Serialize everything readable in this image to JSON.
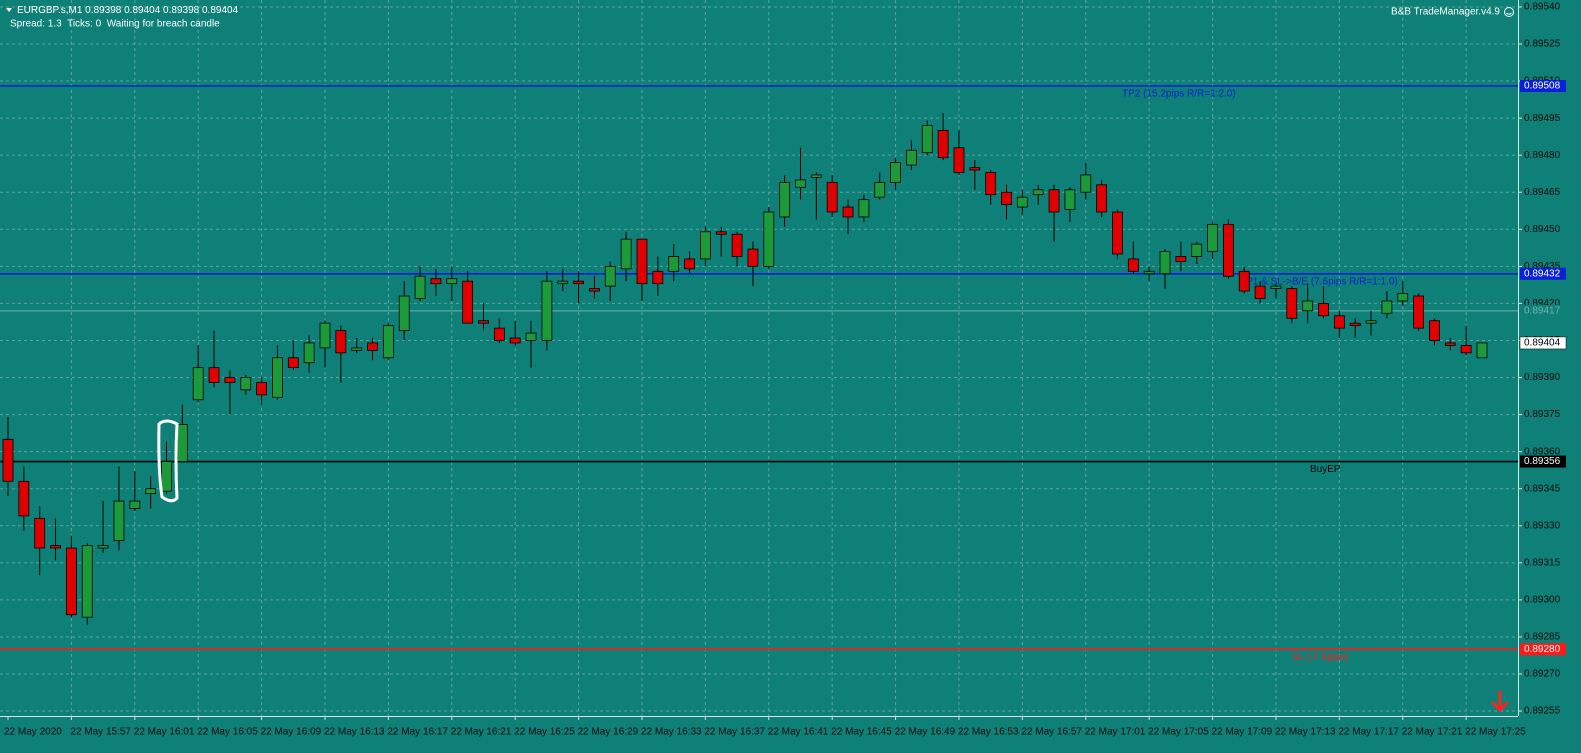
{
  "chart_data": {
    "type": "candlestick",
    "symbol": "EURGBP.s,M1",
    "status": "Spread: 1.3  Ticks: 0  Waiting for breach candle",
    "indicator": "B&B TradeManager.v4.9",
    "up_color": "#1c9a3a",
    "down_color": "#e00000",
    "grid": true,
    "ylim": [
      0.89253,
      0.89542
    ],
    "yticks": [
      {
        "value": 0.8954,
        "label": "0.89540"
      },
      0.89525,
      {
        "value": 0.8951,
        "label": "0.89510"
      },
      0.89495,
      {
        "value": 0.8948,
        "label": "0.89480"
      },
      0.89465,
      {
        "value": 0.8945,
        "label": "0.89450"
      },
      0.89435,
      {
        "value": 0.8942,
        "label": "0.89420"
      },
      0.89405,
      {
        "value": 0.8939,
        "label": "0.89390"
      },
      0.89375,
      {
        "value": 0.8936,
        "label": "0.89360"
      },
      0.89345,
      {
        "value": 0.8933,
        "label": "0.89330"
      },
      0.89315,
      {
        "value": 0.893,
        "label": "0.89300"
      },
      0.89285,
      {
        "value": 0.8927,
        "label": "0.89270"
      },
      0.89255
    ],
    "categories": [
      "22 May 2020",
      null,
      null,
      null,
      "22 May 15:57",
      null,
      null,
      null,
      "22 May 16:01",
      null,
      null,
      null,
      "22 May 16:05",
      null,
      null,
      null,
      "22 May 16:09",
      null,
      null,
      null,
      "22 May 16:13",
      null,
      null,
      null,
      "22 May 16:17",
      null,
      null,
      null,
      "22 May 16:21",
      null,
      null,
      null,
      "22 May 16:25",
      null,
      null,
      null,
      "22 May 16:29",
      null,
      null,
      null,
      "22 May 16:33",
      null,
      null,
      null,
      "22 May 16:37",
      null,
      null,
      null,
      "22 May 16:41",
      null,
      null,
      null,
      "22 May 16:45",
      null,
      null,
      null,
      "22 May 16:49",
      null,
      null,
      null,
      "22 May 16:53",
      null,
      null,
      null,
      "22 May 16:57",
      null,
      null,
      null,
      "22 May 17:01",
      null,
      null,
      null,
      "22 May 17:05",
      null,
      null,
      null,
      "22 May 17:09",
      null,
      null,
      null,
      "22 May 17:13",
      null,
      null,
      null,
      "22 May 17:17",
      null,
      null,
      null,
      "22 May 17:21",
      null,
      null,
      null,
      "22 May 17:25",
      null
    ],
    "open": [
      0.89365,
      0.89348,
      0.89333,
      0.89322,
      0.89321,
      0.89293,
      0.89321,
      0.89324,
      0.89337,
      0.89343,
      0.89344,
      0.89356,
      0.89381,
      0.89394,
      0.8939,
      0.89385,
      0.89388,
      0.89382,
      0.89398,
      0.89396,
      0.89402,
      0.89409,
      0.89401,
      0.89404,
      0.89398,
      0.89409,
      0.89422,
      0.8943,
      0.89428,
      0.89429,
      0.89413,
      0.8941,
      0.89406,
      0.89405,
      0.89405,
      0.89428,
      0.89429,
      0.89426,
      0.89427,
      0.89434,
      0.89446,
      0.89433,
      0.89433,
      0.89438,
      0.89438,
      0.89449,
      0.89448,
      0.89442,
      0.89435,
      0.89455,
      0.89467,
      0.89471,
      0.89469,
      0.89459,
      0.89455,
      0.89463,
      0.89469,
      0.89476,
      0.89481,
      0.8949,
      0.89483,
      0.89475,
      0.89473,
      0.89465,
      0.89459,
      0.89464,
      0.89466,
      0.89458,
      0.89465,
      0.89468,
      0.89457,
      0.89438,
      0.89432,
      0.89432,
      0.89439,
      0.89439,
      0.89441,
      0.89452,
      0.89433,
      0.89427,
      0.89426,
      0.89426,
      0.89417,
      0.8942,
      0.89415,
      0.89412,
      0.89412,
      0.89416,
      0.89421,
      0.89423,
      0.89413,
      0.89404,
      0.89403,
      0.89398
    ],
    "high": [
      0.89374,
      0.89354,
      0.89338,
      0.89333,
      0.89326,
      0.89323,
      0.8934,
      0.89354,
      0.89352,
      0.8935,
      0.89364,
      0.89379,
      0.89403,
      0.89409,
      0.89393,
      0.89391,
      0.8939,
      0.89403,
      0.89405,
      0.89407,
      0.89413,
      0.89411,
      0.89406,
      0.89406,
      0.89412,
      0.89429,
      0.89435,
      0.89434,
      0.89435,
      0.89433,
      0.8942,
      0.89414,
      0.89413,
      0.89413,
      0.89433,
      0.89434,
      0.89433,
      0.89431,
      0.89437,
      0.89449,
      0.89446,
      0.89439,
      0.89444,
      0.89441,
      0.89451,
      0.89451,
      0.89449,
      0.89445,
      0.89459,
      0.89472,
      0.89483,
      0.89473,
      0.89472,
      0.89462,
      0.89464,
      0.89473,
      0.89479,
      0.89486,
      0.89494,
      0.89497,
      0.8949,
      0.89478,
      0.89474,
      0.89468,
      0.89466,
      0.89468,
      0.89468,
      0.89467,
      0.89477,
      0.8947,
      0.89458,
      0.89445,
      0.89435,
      0.89442,
      0.89445,
      0.89445,
      0.89453,
      0.89454,
      0.89435,
      0.89429,
      0.89428,
      0.89427,
      0.89428,
      0.89427,
      0.89417,
      0.89414,
      0.89417,
      0.89425,
      0.89429,
      0.89424,
      0.89414,
      0.89406,
      0.89411,
      0.89404
    ],
    "low": [
      0.89342,
      0.89328,
      0.8931,
      0.89316,
      0.89293,
      0.8929,
      0.89319,
      0.8932,
      0.89336,
      0.89337,
      0.89343,
      0.89356,
      0.8938,
      0.89386,
      0.89375,
      0.89383,
      0.89379,
      0.89381,
      0.89393,
      0.89392,
      0.89394,
      0.89388,
      0.894,
      0.89397,
      0.89397,
      0.89405,
      0.89421,
      0.89423,
      0.89421,
      0.89412,
      0.89409,
      0.89404,
      0.89403,
      0.89394,
      0.89401,
      0.89425,
      0.8942,
      0.89422,
      0.89421,
      0.89429,
      0.89421,
      0.89423,
      0.89429,
      0.89432,
      0.89435,
      0.89439,
      0.89435,
      0.89427,
      0.89434,
      0.89451,
      0.89462,
      0.89454,
      0.89455,
      0.89448,
      0.89453,
      0.89462,
      0.89466,
      0.89474,
      0.8948,
      0.89478,
      0.89472,
      0.89466,
      0.8946,
      0.89454,
      0.89456,
      0.8946,
      0.89445,
      0.89453,
      0.89462,
      0.89455,
      0.89438,
      0.89432,
      0.89429,
      0.89426,
      0.89433,
      0.89436,
      0.89438,
      0.8943,
      0.89424,
      0.8942,
      0.89422,
      0.89412,
      0.89412,
      0.89414,
      0.89406,
      0.89406,
      0.89407,
      0.89414,
      0.89419,
      0.89409,
      0.89403,
      0.89401,
      0.89399,
      0.89398
    ],
    "close": [
      0.89348,
      0.89334,
      0.89321,
      0.89321,
      0.89294,
      0.89322,
      0.89322,
      0.8934,
      0.8934,
      0.89345,
      0.89356,
      0.89371,
      0.89394,
      0.89388,
      0.89388,
      0.8939,
      0.89383,
      0.89398,
      0.89394,
      0.89404,
      0.89412,
      0.894,
      0.89402,
      0.89401,
      0.89411,
      0.89423,
      0.89431,
      0.89428,
      0.8943,
      0.89412,
      0.89412,
      0.89405,
      0.89404,
      0.89408,
      0.89429,
      0.89429,
      0.89428,
      0.89425,
      0.89435,
      0.89446,
      0.89428,
      0.89428,
      0.89439,
      0.89434,
      0.89449,
      0.89448,
      0.89439,
      0.89435,
      0.89457,
      0.89469,
      0.8947,
      0.89472,
      0.89457,
      0.89455,
      0.89462,
      0.89469,
      0.89477,
      0.89482,
      0.89492,
      0.89479,
      0.89473,
      0.89474,
      0.89464,
      0.8946,
      0.89463,
      0.89466,
      0.89457,
      0.89466,
      0.89472,
      0.89457,
      0.8944,
      0.89433,
      0.89433,
      0.89441,
      0.89437,
      0.89444,
      0.89452,
      0.89431,
      0.89425,
      0.89422,
      0.89427,
      0.89414,
      0.89421,
      0.89415,
      0.8941,
      0.89411,
      0.89413,
      0.89421,
      0.89424,
      0.8941,
      0.89405,
      0.89403,
      0.894,
      0.89404
    ],
    "levels": [
      {
        "name": "TP2 (15.2pips R/R=1:2.0)",
        "value": 0.89508,
        "value_label": "0.89508",
        "color": "#0a1fd6"
      },
      {
        "name": "TP1 & SL->B/E (7.6pips R/R=1:1.0)",
        "value": 0.89432,
        "value_label": "0.89432",
        "color": "#0a1fd6"
      },
      {
        "name": "BuyEP",
        "value": 0.89356,
        "value_label": "0.89356",
        "color": "#000000"
      },
      {
        "name": "SL (-7.6pips)",
        "value": 0.8928,
        "value_label": "0.89280",
        "color": "#ff1a1a"
      },
      {
        "value": 0.89417,
        "value_label": "0.89417",
        "color": "#6fb3ab"
      }
    ]
  }
}
